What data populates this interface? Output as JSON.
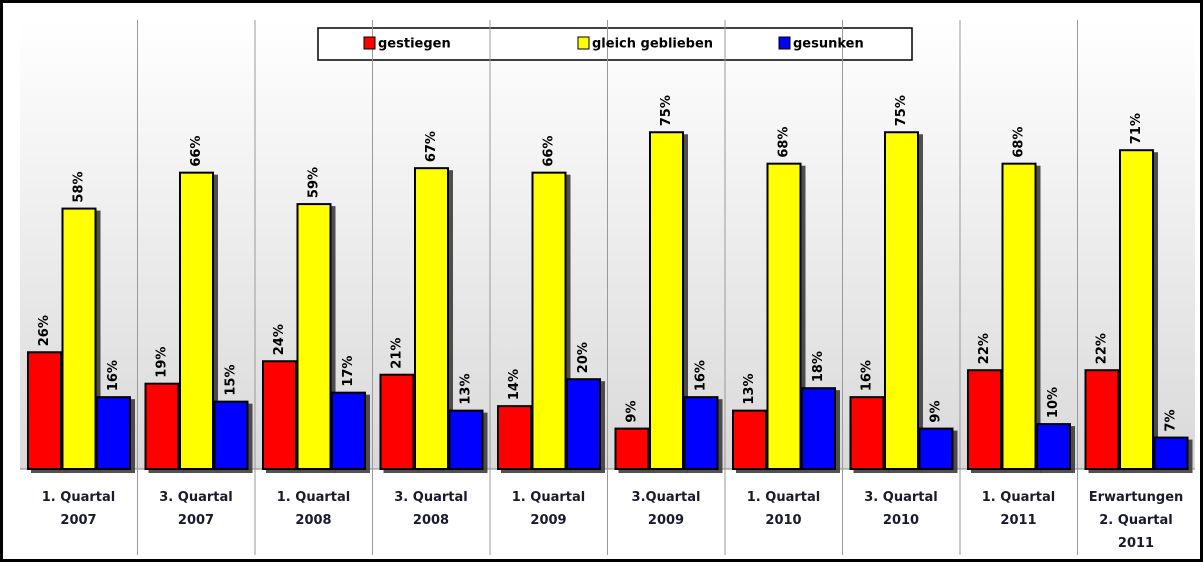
{
  "chart_data": {
    "type": "bar",
    "categories": [
      "1. Quartal\n2007",
      "3. Quartal\n2007",
      "1. Quartal\n2008",
      "3. Quartal\n2008",
      "1. Quartal\n2009",
      "3.Quartal\n2009",
      "1. Quartal\n2010",
      "3. Quartal\n2010",
      "1. Quartal\n2011",
      "Erwartungen\n2. Quartal\n2011"
    ],
    "series": [
      {
        "name": "gestiegen",
        "color": "#ff0000",
        "values": [
          26,
          19,
          24,
          21,
          14,
          9,
          13,
          16,
          22,
          22
        ],
        "value_labels": [
          "26%",
          "19%",
          "24%",
          "21%",
          "14%",
          "9%",
          "13%",
          "16%",
          "22%",
          "22%"
        ]
      },
      {
        "name": "gleich geblieben",
        "color": "#ffff00",
        "values": [
          58,
          66,
          59,
          67,
          66,
          75,
          68,
          75,
          68,
          71
        ],
        "value_labels": [
          "58%",
          "66%",
          "59%",
          "67%",
          "66%",
          "75%",
          "68%",
          "75%",
          "68%",
          "71%"
        ]
      },
      {
        "name": "gesunken",
        "color": "#0000ff",
        "values": [
          16,
          15,
          17,
          13,
          20,
          16,
          18,
          9,
          10,
          7
        ],
        "value_labels": [
          "16%",
          "15%",
          "17%",
          "13%",
          "20%",
          "16%",
          "18%",
          "9%",
          "10%",
          "7%"
        ]
      }
    ],
    "ylim": [
      0,
      100
    ],
    "legend": "top"
  }
}
